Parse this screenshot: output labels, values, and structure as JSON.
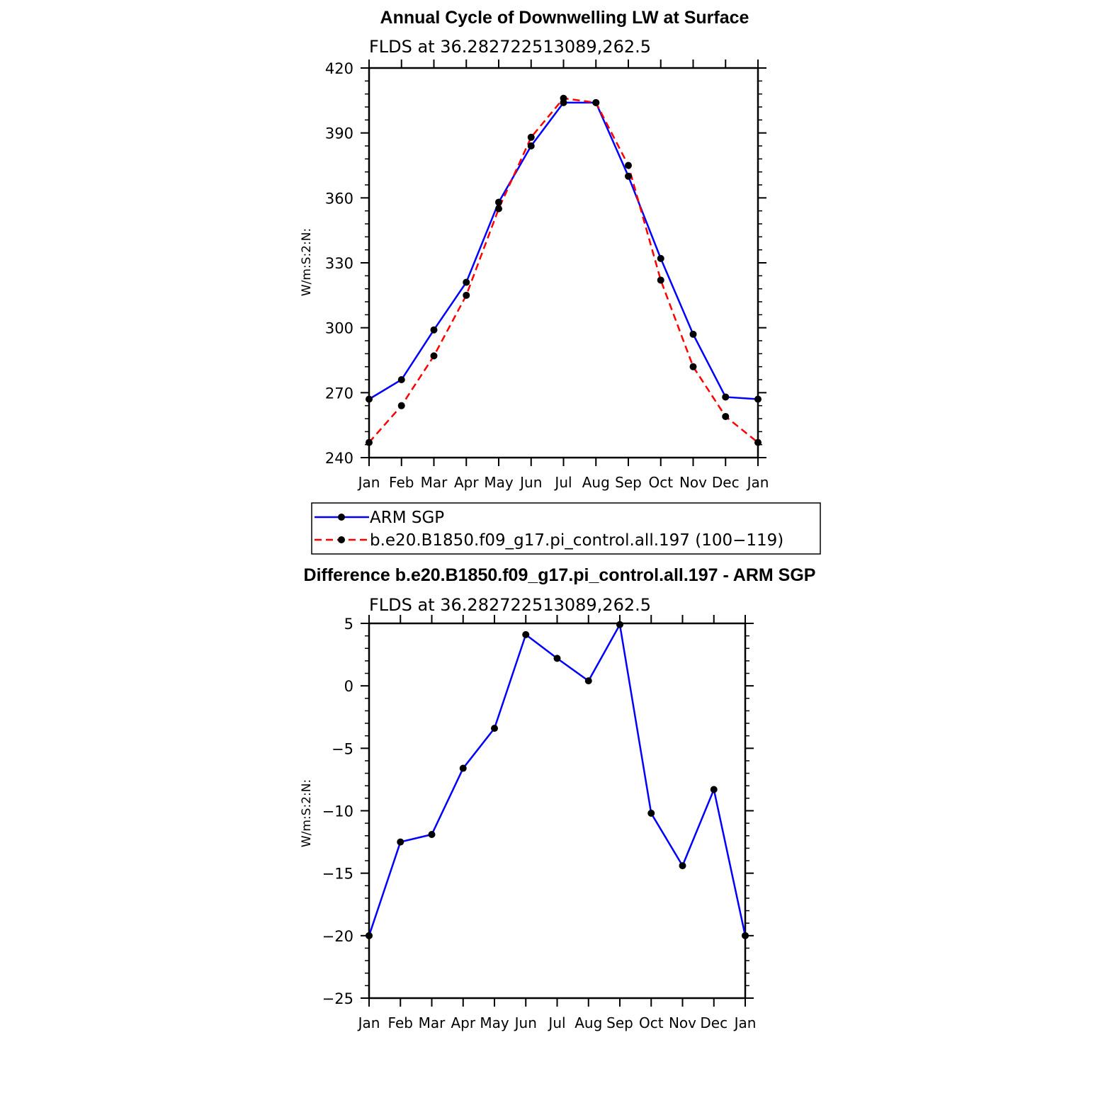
{
  "chart_data": [
    {
      "type": "line",
      "title": "Annual Cycle of Downwelling LW at Surface",
      "subtitle": "FLDS at 36.282722513089,262.5",
      "ylabel": "W/m:S:2:N:",
      "xlabel": "",
      "categories": [
        "Jan",
        "Feb",
        "Mar",
        "Apr",
        "May",
        "Jun",
        "Jul",
        "Aug",
        "Sep",
        "Oct",
        "Nov",
        "Dec",
        "Jan"
      ],
      "ylim": [
        240,
        420
      ],
      "yticks": [
        240,
        270,
        300,
        330,
        360,
        390,
        420
      ],
      "series": [
        {
          "name": "ARM SGP",
          "color": "#0000ff",
          "dash": "solid",
          "values": [
            267,
            276,
            299,
            321,
            358,
            384,
            404,
            404,
            370,
            332,
            297,
            268,
            267
          ]
        },
        {
          "name": "b.e20.B1850.f09_g17.pi_control.all.197 (100−119)",
          "color": "#ff0000",
          "dash": "dashed",
          "values": [
            247,
            264,
            287,
            315,
            355,
            388,
            406,
            404,
            375,
            322,
            282,
            259,
            247
          ]
        }
      ],
      "legend": "bottom"
    },
    {
      "type": "line",
      "title": "Difference b.e20.B1850.f09_g17.pi_control.all.197 - ARM SGP",
      "subtitle": "FLDS at 36.282722513089,262.5",
      "ylabel": "W/m:S:2:N:",
      "xlabel": "",
      "categories": [
        "Jan",
        "Feb",
        "Mar",
        "Apr",
        "May",
        "Jun",
        "Jul",
        "Aug",
        "Sep",
        "Oct",
        "Nov",
        "Dec",
        "Jan"
      ],
      "ylim": [
        -25,
        5
      ],
      "yticks": [
        -25,
        -20,
        -15,
        -10,
        -5,
        0,
        5
      ],
      "ytick_labels": [
        "−25",
        "−20",
        "−15",
        "−10",
        "−5",
        "0",
        "5"
      ],
      "series": [
        {
          "color": "#0000ff",
          "dash": "solid",
          "values": [
            -20,
            -12.5,
            -11.9,
            -6.6,
            -3.4,
            4.1,
            2.2,
            0.4,
            4.9,
            -10.2,
            -14.4,
            -8.3,
            -20
          ]
        }
      ]
    }
  ]
}
